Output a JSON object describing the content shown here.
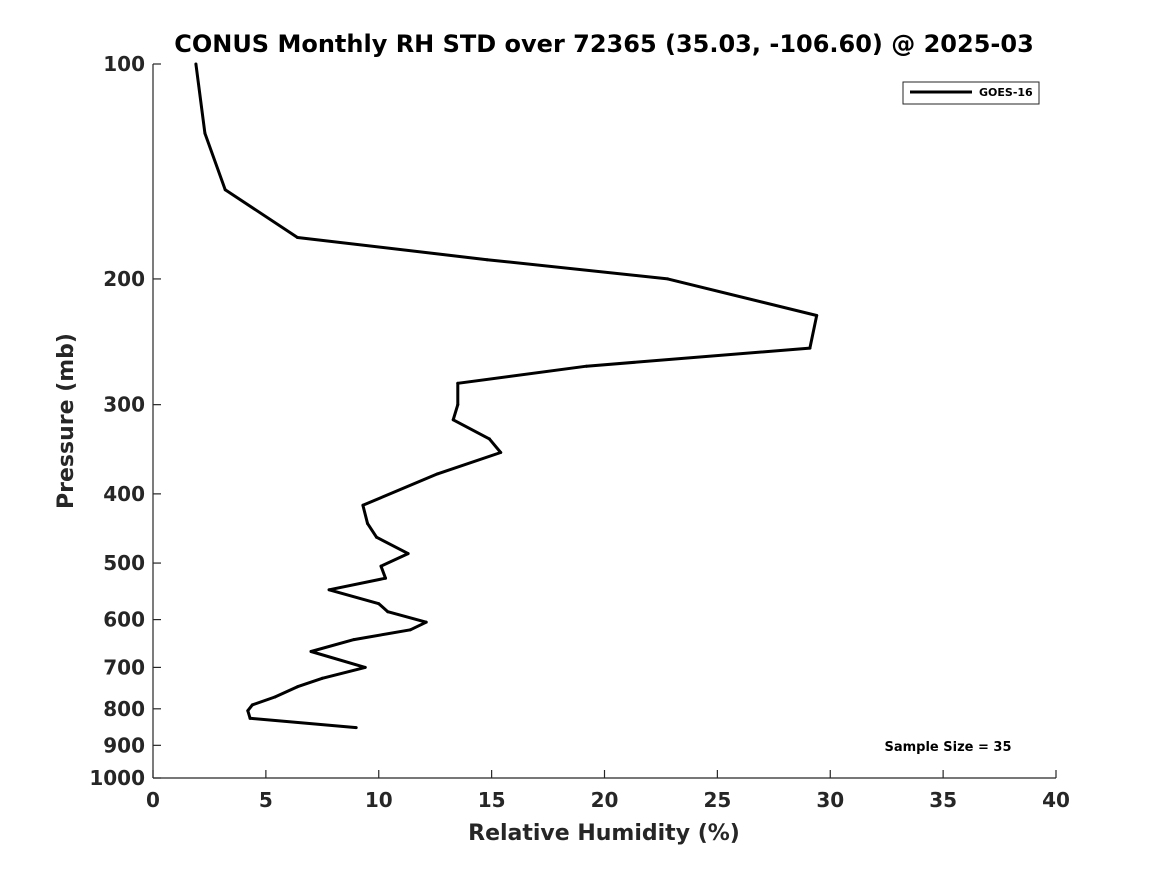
{
  "chart_data": {
    "type": "line",
    "title": "CONUS Monthly RH STD over 72365 (35.03, -106.60) @ 2025-03",
    "xlabel": "Relative Humidity (%)",
    "ylabel": "Pressure (mb)",
    "xlim": [
      0,
      40
    ],
    "ylim": [
      1000,
      100
    ],
    "yscale": "log",
    "y_reversed": true,
    "grid": false,
    "legend_position": "top-right",
    "x_ticks": [
      0,
      5,
      10,
      15,
      20,
      25,
      30,
      35,
      40
    ],
    "x_tick_labels": [
      "0",
      "5",
      "10",
      "15",
      "20",
      "25",
      "30",
      "35",
      "40"
    ],
    "y_ticks": [
      100,
      200,
      300,
      400,
      500,
      600,
      700,
      800,
      900,
      1000
    ],
    "y_tick_labels": [
      "100",
      "200",
      "300",
      "400",
      "500",
      "600",
      "700",
      "800",
      "900",
      "1000"
    ],
    "annotations": [
      "Sample Size = 35"
    ],
    "series": [
      {
        "name": "GOES-16",
        "color": "#000000",
        "points": [
          {
            "x": 1.9,
            "y": 100
          },
          {
            "x": 2.3,
            "y": 125
          },
          {
            "x": 3.2,
            "y": 150
          },
          {
            "x": 6.4,
            "y": 175
          },
          {
            "x": 14.8,
            "y": 188
          },
          {
            "x": 22.8,
            "y": 200
          },
          {
            "x": 29.4,
            "y": 225
          },
          {
            "x": 29.1,
            "y": 250
          },
          {
            "x": 19.2,
            "y": 265
          },
          {
            "x": 13.5,
            "y": 280
          },
          {
            "x": 13.5,
            "y": 300
          },
          {
            "x": 13.3,
            "y": 315
          },
          {
            "x": 14.9,
            "y": 335
          },
          {
            "x": 15.4,
            "y": 350
          },
          {
            "x": 12.6,
            "y": 375
          },
          {
            "x": 9.3,
            "y": 415
          },
          {
            "x": 9.5,
            "y": 440
          },
          {
            "x": 9.9,
            "y": 460
          },
          {
            "x": 11.3,
            "y": 485
          },
          {
            "x": 10.1,
            "y": 505
          },
          {
            "x": 10.3,
            "y": 525
          },
          {
            "x": 7.8,
            "y": 545
          },
          {
            "x": 10.0,
            "y": 570
          },
          {
            "x": 10.4,
            "y": 585
          },
          {
            "x": 12.1,
            "y": 605
          },
          {
            "x": 11.4,
            "y": 620
          },
          {
            "x": 8.9,
            "y": 640
          },
          {
            "x": 7.0,
            "y": 665
          },
          {
            "x": 9.4,
            "y": 700
          },
          {
            "x": 7.5,
            "y": 725
          },
          {
            "x": 6.4,
            "y": 745
          },
          {
            "x": 5.4,
            "y": 770
          },
          {
            "x": 4.4,
            "y": 790
          },
          {
            "x": 4.2,
            "y": 805
          },
          {
            "x": 4.3,
            "y": 825
          },
          {
            "x": 9.0,
            "y": 850
          }
        ]
      }
    ]
  }
}
